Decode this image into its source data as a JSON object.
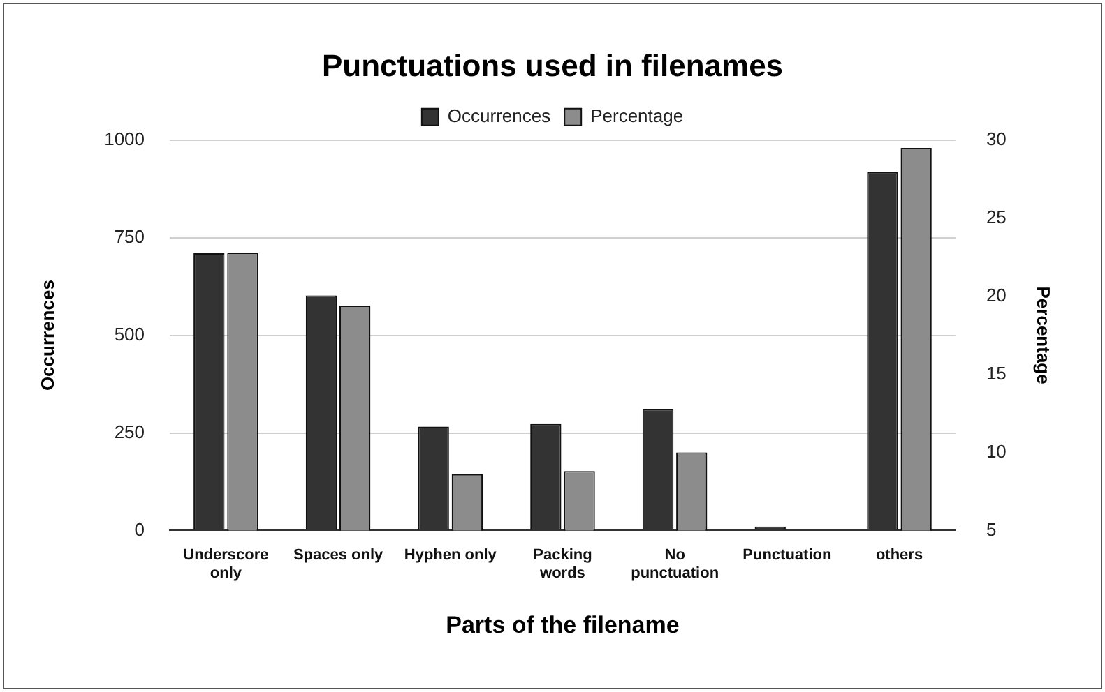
{
  "chart_data": {
    "type": "bar",
    "title": "Punctuations used in filenames",
    "xlabel": "Parts of the filename",
    "ylabel": "Occurrences",
    "y2label": "Percentage",
    "categories": [
      "Underscore only",
      "Spaces only",
      "Hyphen only",
      "Packing words",
      "No punctuation",
      "Punctuation",
      "others"
    ],
    "series": [
      {
        "name": "Occurrences",
        "color": "#333333",
        "values": [
          710,
          602,
          266,
          273,
          311,
          10,
          918
        ]
      },
      {
        "name": "Percentage",
        "color": "#8c8c8c",
        "axis": "y2",
        "values": [
          22.8,
          19.4,
          8.6,
          8.8,
          10,
          null,
          29.5
        ]
      }
    ],
    "ylim": [
      0,
      1000
    ],
    "yticks": [
      0,
      250,
      500,
      750,
      1000
    ],
    "y2lim": [
      5,
      30
    ],
    "y2ticks": [
      5,
      10,
      15,
      20,
      25,
      30
    ],
    "grid": "y",
    "legend": "top"
  }
}
